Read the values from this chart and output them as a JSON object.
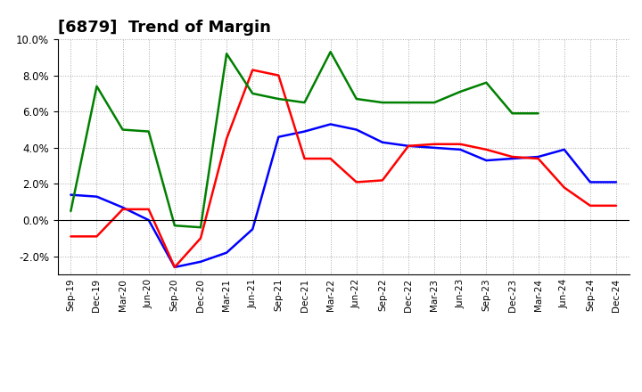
{
  "title": "[6879]  Trend of Margin",
  "x_labels": [
    "Sep-19",
    "Dec-19",
    "Mar-20",
    "Jun-20",
    "Sep-20",
    "Dec-20",
    "Mar-21",
    "Jun-21",
    "Sep-21",
    "Dec-21",
    "Mar-22",
    "Jun-22",
    "Sep-22",
    "Dec-22",
    "Mar-23",
    "Jun-23",
    "Sep-23",
    "Dec-23",
    "Mar-24",
    "Jun-24",
    "Sep-24",
    "Dec-24"
  ],
  "ordinary_income": [
    1.4,
    1.3,
    0.7,
    0.0,
    -2.6,
    -2.3,
    -1.8,
    -0.5,
    4.6,
    4.9,
    5.3,
    5.0,
    4.3,
    4.1,
    4.0,
    3.9,
    3.3,
    3.4,
    3.5,
    3.9,
    2.1,
    2.1
  ],
  "net_income": [
    -0.9,
    -0.9,
    0.6,
    0.6,
    -2.6,
    -1.0,
    4.5,
    8.3,
    8.0,
    3.4,
    3.4,
    2.1,
    2.2,
    4.1,
    4.2,
    4.2,
    3.9,
    3.5,
    3.4,
    1.8,
    0.8,
    0.8
  ],
  "operating_cashflow": [
    0.5,
    7.4,
    5.0,
    4.9,
    -0.3,
    -0.4,
    9.2,
    7.0,
    6.7,
    6.5,
    9.3,
    6.7,
    6.5,
    6.5,
    6.5,
    7.1,
    7.6,
    5.9,
    5.9,
    null,
    null,
    null
  ],
  "ylim": [
    -3.0,
    10.0
  ],
  "yticks": [
    -2.0,
    0.0,
    2.0,
    4.0,
    6.0,
    8.0,
    10.0
  ],
  "line_colors": {
    "ordinary_income": "#0000FF",
    "net_income": "#FF0000",
    "operating_cashflow": "#008000"
  },
  "line_width": 1.8,
  "bg_color": "#FFFFFF",
  "plot_bg_color": "#FFFFFF",
  "grid_color": "#AAAAAA",
  "title_fontsize": 13
}
